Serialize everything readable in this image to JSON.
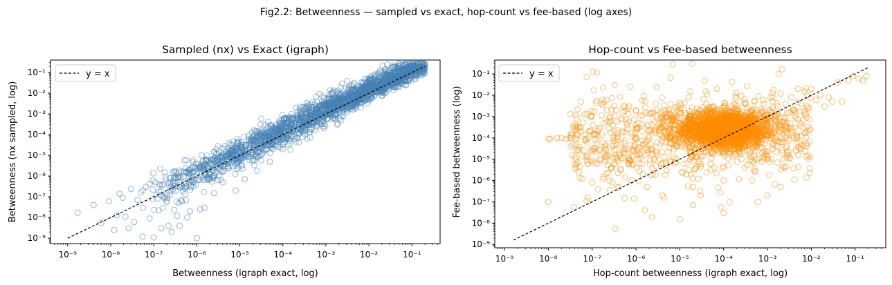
{
  "figure_title": "Fig2.2: Betweenness — sampled vs exact, hop-count vs fee-based (log axes)",
  "chart_data": [
    {
      "type": "scatter",
      "title": "Sampled (nx) vs Exact (igraph)",
      "xlabel": "Betweenness (igraph exact, log)",
      "ylabel": "Betweenness (nx sampled, log)",
      "xscale": "log",
      "yscale": "log",
      "xlim": [
        4e-10,
        0.45
      ],
      "ylim": [
        5.5e-10,
        0.4
      ],
      "xticks": [
        "10⁻⁹",
        "10⁻⁸",
        "10⁻⁷",
        "10⁻⁶",
        "10⁻⁵",
        "10⁻⁴",
        "10⁻³",
        "10⁻²",
        "10⁻¹"
      ],
      "yticks": [
        "10⁻⁹",
        "10⁻⁸",
        "10⁻⁷",
        "10⁻⁶",
        "10⁻⁵",
        "10⁻⁴",
        "10⁻³",
        "10⁻²",
        "10⁻¹"
      ],
      "marker_color": "#4682b4",
      "reference_line": {
        "label": "y = x",
        "from": [
          1e-09,
          1e-09
        ],
        "to": [
          0.2,
          0.2
        ],
        "style": "dashed",
        "color": "#000000"
      },
      "legend": {
        "entries": [
          "y = x"
        ],
        "placement": "top-left"
      },
      "grid": false,
      "series": [
        {
          "points": [
            [
              1.7e-09,
              1.7e-08
            ],
            [
              4e-09,
              4e-08
            ],
            [
              6e-09,
              5.5e-09
            ],
            [
              9e-09,
              6e-08
            ],
            [
              1.2e-08,
              2.5e-09
            ],
            [
              1.4e-08,
              1.3e-08
            ],
            [
              1.6e-08,
              1.4e-07
            ],
            [
              1.9e-08,
              9e-08
            ],
            [
              2.2e-08,
              1.1e-08
            ],
            [
              2.6e-08,
              3e-09
            ],
            [
              3e-08,
              2.4e-07
            ],
            [
              3.5e-08,
              6e-09
            ],
            [
              4.2e-08,
              7e-08
            ],
            [
              5e-08,
              1.6e-07
            ],
            [
              5.5e-08,
              1.2e-09
            ],
            [
              6.5e-08,
              3e-07
            ],
            [
              8e-08,
              9e-09
            ],
            [
              1e-07,
              1.1e-09
            ],
            [
              1.1e-07,
              5e-07
            ],
            [
              1.3e-07,
              2.2e-08
            ],
            [
              1.5e-07,
              3e-09
            ],
            [
              1.8e-07,
              1.5e-06
            ],
            [
              2.2e-07,
              4e-09
            ],
            [
              2.6e-07,
              2e-09
            ],
            [
              3e-07,
              8e-07
            ],
            [
              3.5e-07,
              1.2e-08
            ],
            [
              4e-07,
              4e-09
            ],
            [
              4.5e-07,
              6e-08
            ],
            [
              5.5e-07,
              2.4e-06
            ],
            [
              6e-07,
              1e-08
            ],
            [
              7e-07,
              2e-08
            ],
            [
              8.5e-07,
              1.6e-06
            ],
            [
              1e-06,
              1e-09
            ],
            [
              1.2e-06,
              2.5e-08
            ],
            [
              1.5e-06,
              3e-08
            ],
            [
              1.8e-06,
              8e-07
            ],
            [
              2.2e-06,
              3.8e-06
            ],
            [
              2.5e-06,
              1.5e-07
            ],
            [
              3e-06,
              6e-06
            ],
            [
              4e-06,
              5e-07
            ],
            [
              6e-06,
              1.2e-05
            ],
            [
              8e-06,
              2e-07
            ],
            [
              1e-05,
              3e-05
            ],
            [
              1.3e-05,
              7e-07
            ],
            [
              1.8e-05,
              6e-05
            ],
            [
              2.5e-05,
              1.8e-06
            ],
            [
              3.5e-05,
              0.00012
            ],
            [
              5e-05,
              5e-06
            ],
            [
              7e-05,
              0.0003
            ],
            [
              0.0001,
              2e-05
            ],
            [
              0.00015,
              0.0007
            ],
            [
              0.0002,
              0.002
            ],
            [
              0.00025,
              0.0022
            ],
            [
              0.0003,
              0.0021
            ],
            [
              0.00035,
              0.0023
            ],
            [
              0.0004,
              0.0022
            ],
            [
              0.0005,
              0.0021
            ],
            [
              0.0006,
              0.0024
            ],
            [
              0.002,
              0.01
            ],
            [
              0.003,
              0.008
            ],
            [
              0.004,
              0.015
            ],
            [
              0.005,
              0.003
            ],
            [
              0.007,
              0.02
            ],
            [
              0.01,
              0.009
            ],
            [
              0.015,
              0.04
            ],
            [
              0.02,
              0.02
            ],
            [
              0.03,
              0.05
            ],
            [
              0.04,
              0.06
            ],
            [
              0.05,
              0.045
            ],
            [
              0.07,
              0.1
            ],
            [
              0.09,
              0.11
            ],
            [
              0.12,
              0.15
            ],
            [
              0.15,
              0.14
            ],
            [
              0.2,
              0.18
            ]
          ]
        }
      ]
    },
    {
      "type": "scatter",
      "title": "Hop-count vs Fee-based betweenness",
      "xlabel": "Hop-count betweenness (igraph exact, log)",
      "ylabel": "Fee-based betweenness (log)",
      "xscale": "log",
      "yscale": "log",
      "xlim": [
        6e-10,
        0.5
      ],
      "ylim": [
        7e-10,
        0.45
      ],
      "xticks": [
        "10⁻⁹",
        "10⁻⁸",
        "10⁻⁷",
        "10⁻⁶",
        "10⁻⁵",
        "10⁻⁴",
        "10⁻³",
        "10⁻²",
        "10⁻¹"
      ],
      "yticks": [
        "10⁻⁹",
        "10⁻⁸",
        "10⁻⁷",
        "10⁻⁶",
        "10⁻⁵",
        "10⁻⁴",
        "10⁻³",
        "10⁻²",
        "10⁻¹"
      ],
      "marker_color": "#ff8c00",
      "reference_line": {
        "label": "y = x",
        "from": [
          1.6e-09,
          1.6e-09
        ],
        "to": [
          0.2,
          0.2
        ],
        "style": "dashed",
        "color": "#000000"
      },
      "legend": {
        "entries": [
          "y = x"
        ],
        "placement": "top-left"
      },
      "grid": false,
      "series": [
        {
          "points": [
            [
              1e-08,
              1e-07
            ],
            [
              1e-08,
              9e-05
            ],
            [
              1.1e-08,
              9e-05
            ],
            [
              1.6e-08,
              0.0001
            ],
            [
              2e-08,
              0.0001
            ],
            [
              2.5e-08,
              9e-05
            ],
            [
              3e-08,
              0.0001
            ],
            [
              3.5e-08,
              1.6e-05
            ],
            [
              4e-08,
              3.5e-06
            ],
            [
              4.5e-08,
              2.5e-05
            ],
            [
              5e-08,
              2.4e-06
            ],
            [
              5.5e-08,
              0.0002
            ],
            [
              6e-08,
              1.2e-06
            ],
            [
              7e-08,
              9e-05
            ],
            [
              8e-08,
              6e-06
            ],
            [
              9e-08,
              0.00022
            ],
            [
              1e-07,
              8e-07
            ],
            [
              1.1e-07,
              3e-05
            ],
            [
              1.3e-07,
              6e-06
            ],
            [
              1.5e-07,
              0.0003
            ],
            [
              1.8e-07,
              1.2e-06
            ],
            [
              2e-07,
              4e-05
            ],
            [
              2.2e-07,
              0.002
            ],
            [
              2.4e-07,
              1.5e-05
            ],
            [
              2.5e-07,
              1e-06
            ],
            [
              3e-07,
              0.0001
            ],
            [
              3.5e-07,
              0.002
            ],
            [
              4e-07,
              5e-07
            ],
            [
              4.5e-07,
              3e-06
            ],
            [
              5e-07,
              0.0002
            ],
            [
              5.5e-07,
              1.5e-07
            ],
            [
              6e-07,
              3e-05
            ],
            [
              7e-07,
              0.003
            ],
            [
              8e-07,
              1e-06
            ],
            [
              9e-07,
              4e-05
            ],
            [
              1e-06,
              0.002
            ],
            [
              1.2e-06,
              6e-06
            ],
            [
              1.4e-06,
              0.0002
            ],
            [
              1.6e-06,
              4e-08
            ],
            [
              1.8e-06,
              5e-07
            ],
            [
              2e-06,
              0.0001
            ],
            [
              2.5e-06,
              0.0015
            ],
            [
              3e-06,
              1.5e-05
            ],
            [
              3.5e-06,
              0.0003
            ],
            [
              4e-06,
              2e-07
            ],
            [
              4.5e-06,
              0.002
            ],
            [
              5e-06,
              3e-06
            ],
            [
              6e-06,
              0.0001
            ],
            [
              7e-06,
              0.001
            ],
            [
              8e-06,
              4e-05
            ],
            [
              9e-06,
              0.003
            ],
            [
              1e-05,
              1.5e-08
            ],
            [
              1.2e-05,
              0.00015
            ],
            [
              1.4e-05,
              2e-06
            ],
            [
              1.6e-05,
              0.008
            ],
            [
              1.8e-05,
              0.0003
            ],
            [
              2e-05,
              5e-07
            ],
            [
              2.5e-05,
              0.0001
            ],
            [
              3e-05,
              3e-05
            ],
            [
              3.5e-05,
              0.0004
            ],
            [
              4e-05,
              0.002
            ],
            [
              4.5e-05,
              0.00015
            ],
            [
              5e-05,
              6e-06
            ],
            [
              6e-05,
              0.0004
            ],
            [
              7e-05,
              0.02
            ],
            [
              8e-05,
              0.00015
            ],
            [
              9e-05,
              0.001
            ],
            [
              0.0001,
              0.0001
            ],
            [
              0.00012,
              0.0002
            ],
            [
              0.00014,
              0.0006
            ],
            [
              0.00016,
              0.0003
            ],
            [
              0.00018,
              0.0001
            ],
            [
              0.0002,
              0.002
            ],
            [
              0.00022,
              0.0004
            ],
            [
              0.00024,
              0.00015
            ],
            [
              0.00026,
              0.0008
            ],
            [
              0.00028,
              0.0003
            ],
            [
              0.0003,
              0.004
            ],
            [
              0.00033,
              0.0005
            ],
            [
              0.00036,
              0.0002
            ],
            [
              0.0004,
              0.001
            ],
            [
              0.00045,
              0.0006
            ],
            [
              0.0005,
              0.0003
            ],
            [
              0.00055,
              0.002
            ],
            [
              0.0006,
              0.0005
            ],
            [
              0.00065,
              0.0001
            ],
            [
              0.0007,
              0.0015
            ],
            [
              0.0008,
              0.006
            ],
            [
              0.0009,
              0.0004
            ],
            [
              0.001,
              0.0008
            ],
            [
              0.0011,
              0.002
            ],
            [
              0.0012,
              0.0003
            ],
            [
              0.0013,
              0.005
            ],
            [
              0.0015,
              0.001
            ],
            [
              0.0017,
              0.003
            ],
            [
              0.002,
              0.012
            ],
            [
              0.0023,
              0.0006
            ],
            [
              0.0026,
              0.004
            ],
            [
              0.003,
              0.0015
            ],
            [
              0.0035,
              0.008
            ],
            [
              0.004,
              0.002
            ],
            [
              0.005,
              0.02
            ],
            [
              0.006,
              0.004
            ],
            [
              0.007,
              0.015
            ],
            [
              0.008,
              0.003
            ],
            [
              0.01,
              0.02
            ],
            [
              0.013,
              0.006
            ],
            [
              0.016,
              0.01
            ],
            [
              0.02,
              0.003
            ],
            [
              0.025,
              0.008
            ],
            [
              0.03,
              0.005
            ],
            [
              0.04,
              0.04
            ],
            [
              0.05,
              0.005
            ],
            [
              0.07,
              0.05
            ],
            [
              0.09,
              0.08
            ],
            [
              0.12,
              0.06
            ],
            [
              0.15,
              0.05
            ],
            [
              0.18,
              0.08
            ],
            [
              0.0002,
              0.0008
            ],
            [
              0.00015,
              0.003
            ],
            [
              0.0005,
              0.005
            ],
            [
              3e-05,
              2e-07
            ],
            [
              0.0001,
              3e-08
            ],
            [
              2e-05,
              7e-08
            ],
            [
              0.0006,
              1e-07
            ],
            [
              0.001,
              2e-07
            ],
            [
              0.002,
              5e-07
            ],
            [
              0.0001,
              1e-06
            ],
            [
              0.0003,
              4e-06
            ],
            [
              0.001,
              1e-05
            ],
            [
              8e-05,
              2e-05
            ],
            [
              0.0004,
              2e-05
            ],
            [
              4e-06,
              0.0003
            ],
            [
              8e-06,
              8e-05
            ],
            [
              3e-06,
              0.002
            ],
            [
              2e-07,
              5e-05
            ]
          ]
        }
      ]
    }
  ]
}
